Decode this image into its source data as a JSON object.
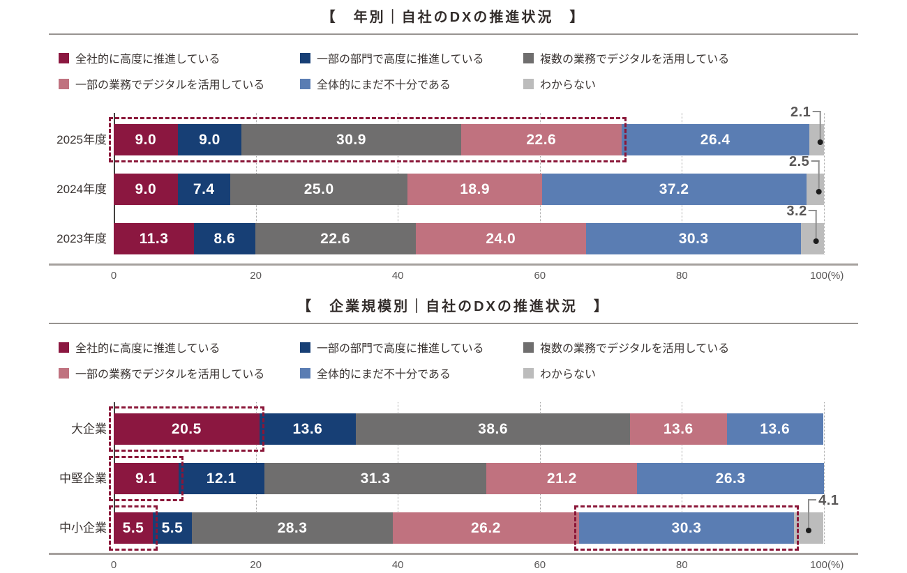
{
  "chart_data": [
    {
      "type": "bar",
      "orientation": "horizontal",
      "stacked": true,
      "title": "【　年別｜自社のDXの推進状況　】",
      "categories": [
        "2025年度",
        "2024年度",
        "2023年度"
      ],
      "series": [
        {
          "name": "全社的に高度に推進している",
          "color": "#8b1740",
          "values": [
            9.0,
            9.0,
            11.3
          ]
        },
        {
          "name": "一部の部門で高度に推進している",
          "color": "#173f75",
          "values": [
            9.0,
            7.4,
            8.6
          ]
        },
        {
          "name": "複数の業務でデジタルを活用している",
          "color": "#6f6e6e",
          "values": [
            30.9,
            25.0,
            22.6
          ]
        },
        {
          "name": "一部の業務でデジタルを活用している",
          "color": "#c0727f",
          "values": [
            22.6,
            18.9,
            24.0
          ]
        },
        {
          "name": "全体的にまだ不十分である",
          "color": "#5a7db3",
          "values": [
            26.4,
            37.2,
            30.3
          ]
        },
        {
          "name": "わからない",
          "color": "#bcbcbc",
          "values": [
            2.1,
            2.5,
            3.2
          ],
          "label_inside": false
        }
      ],
      "xlim": [
        0,
        100
      ],
      "x_ticks": [
        0,
        20,
        40,
        60,
        80,
        100
      ],
      "x_tick_labels": [
        "0",
        "20",
        "40",
        "60",
        "80",
        "100(%)"
      ],
      "grid": "dotted-vertical",
      "legend_position": "top",
      "highlights": [
        {
          "row": 0,
          "start_pct": 0,
          "end_pct": 71.5
        }
      ],
      "callouts": [
        {
          "row": 0,
          "label": "2.1",
          "dot_pct": 98.95,
          "side": "left"
        },
        {
          "row": 1,
          "label": "2.5",
          "dot_pct": 98.75,
          "side": "left"
        },
        {
          "row": 2,
          "label": "3.2",
          "dot_pct": 98.4,
          "side": "left"
        }
      ],
      "highlight_color": "#8a1638"
    },
    {
      "type": "bar",
      "orientation": "horizontal",
      "stacked": true,
      "title": "【　企業規模別｜自社のDXの推進状況　】",
      "categories": [
        "大企業",
        "中堅企業",
        "中小企業"
      ],
      "series": [
        {
          "name": "全社的に高度に推進している",
          "color": "#8b1740",
          "values": [
            20.5,
            9.1,
            5.5
          ]
        },
        {
          "name": "一部の部門で高度に推進している",
          "color": "#173f75",
          "values": [
            13.6,
            12.1,
            5.5
          ]
        },
        {
          "name": "複数の業務でデジタルを活用している",
          "color": "#6f6e6e",
          "values": [
            38.6,
            31.3,
            28.3
          ]
        },
        {
          "name": "一部の業務でデジタルを活用している",
          "color": "#c0727f",
          "values": [
            13.6,
            21.2,
            26.2
          ]
        },
        {
          "name": "全体的にまだ不十分である",
          "color": "#5a7db3",
          "values": [
            13.6,
            26.3,
            30.3
          ]
        },
        {
          "name": "わからない",
          "color": "#bcbcbc",
          "values": [
            null,
            null,
            4.1
          ],
          "label_inside": false
        }
      ],
      "xlim": [
        0,
        100
      ],
      "x_ticks": [
        0,
        20,
        40,
        60,
        80,
        100
      ],
      "x_tick_labels": [
        "0",
        "20",
        "40",
        "60",
        "80",
        "100(%)"
      ],
      "grid": "dotted-vertical",
      "legend_position": "top",
      "highlights": [
        {
          "row": 0,
          "start_pct": 0,
          "end_pct": 20.5
        },
        {
          "row": 1,
          "start_pct": 0,
          "end_pct": 9.1
        },
        {
          "row": 2,
          "start_pct": 0,
          "end_pct": 5.5
        },
        {
          "row": 2,
          "start_pct": 65.5,
          "end_pct": 95.8
        }
      ],
      "callouts": [
        {
          "row": 2,
          "label": "4.1",
          "dot_pct": 97.85,
          "side": "right"
        }
      ],
      "highlight_color": "#8a1638"
    }
  ]
}
